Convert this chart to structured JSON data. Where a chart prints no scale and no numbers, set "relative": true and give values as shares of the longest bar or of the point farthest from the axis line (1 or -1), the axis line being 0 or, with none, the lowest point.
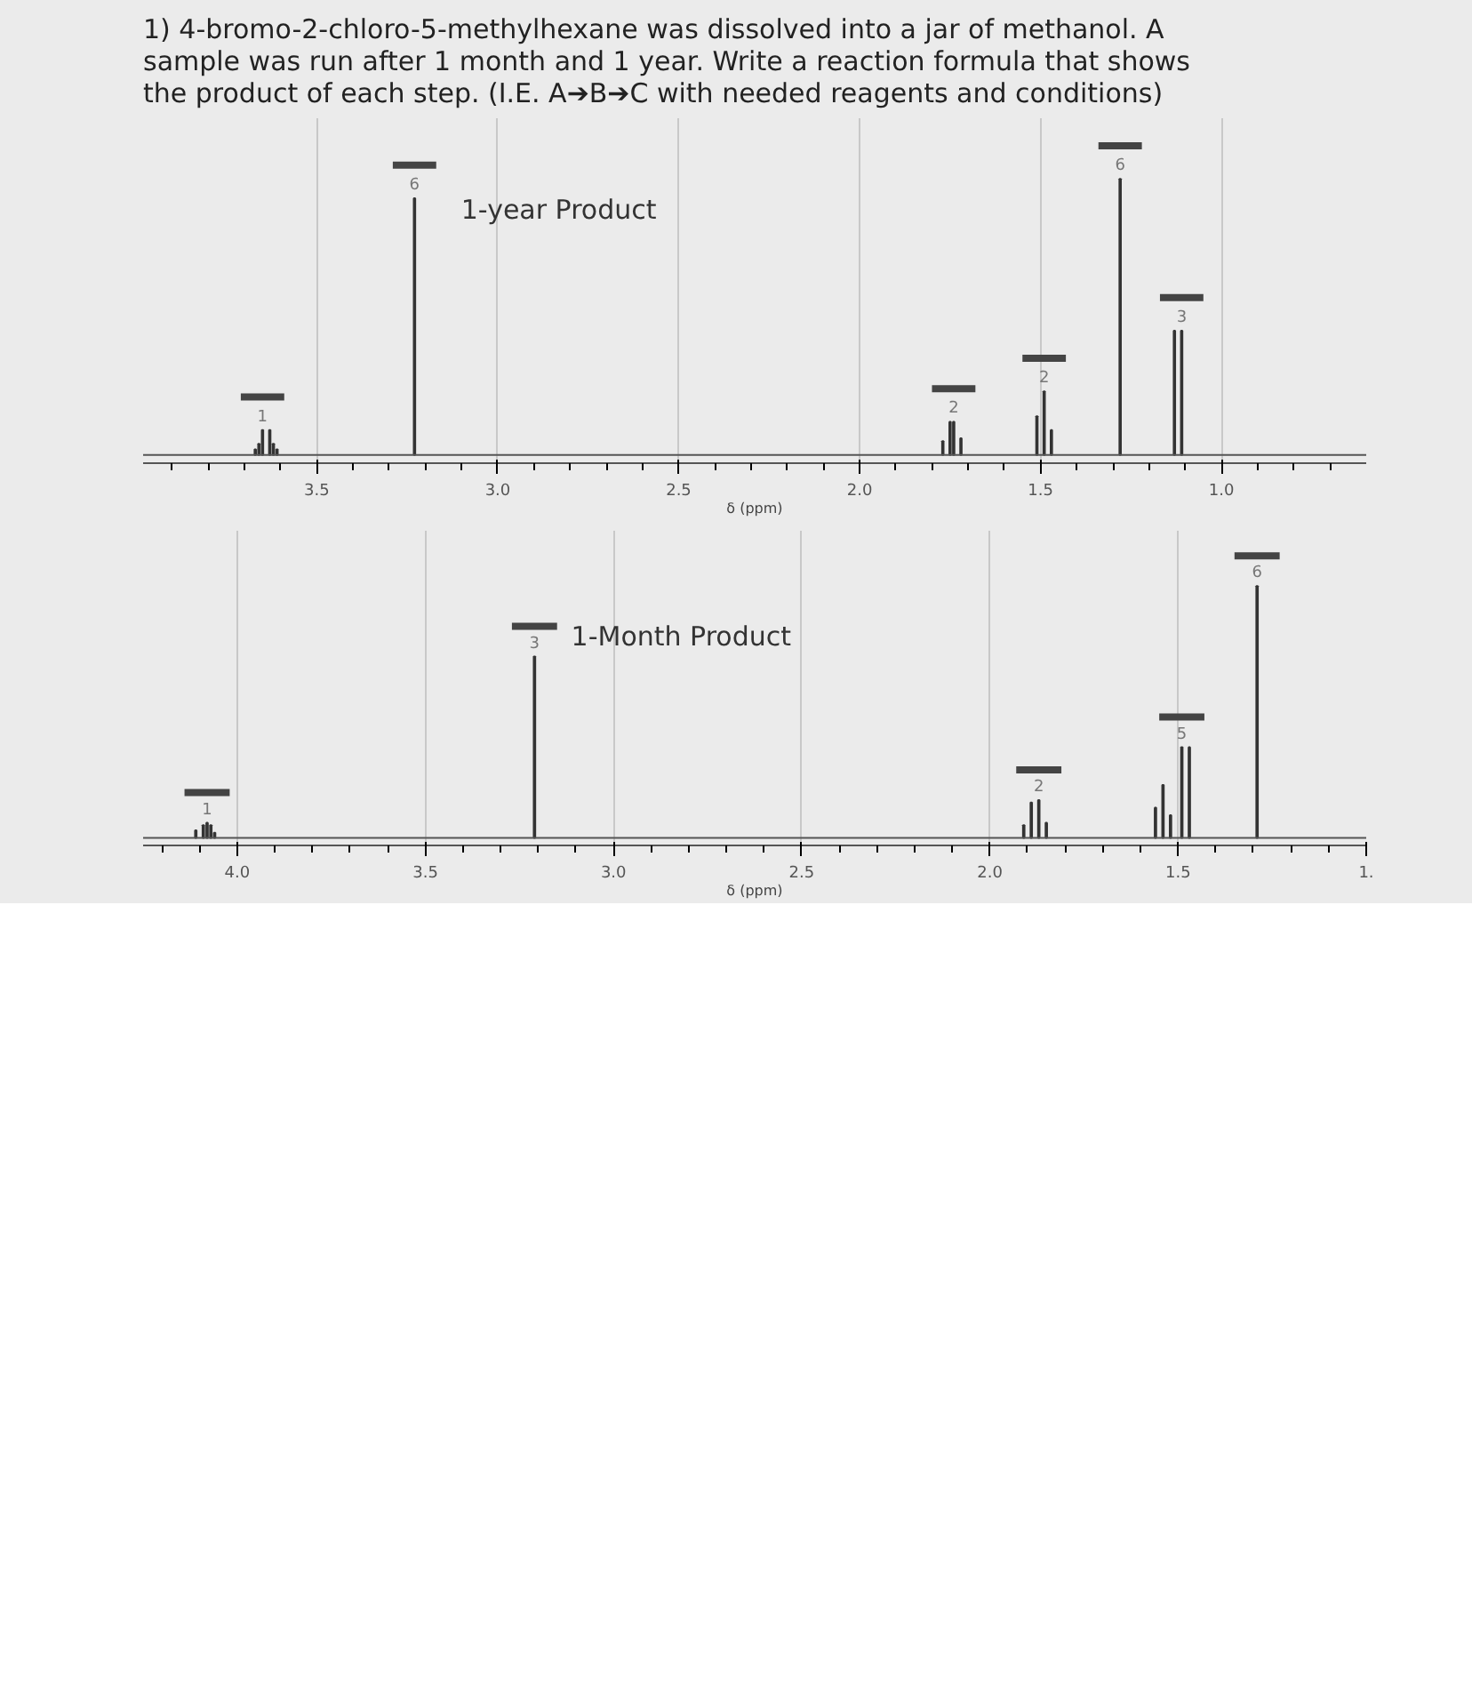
{
  "chart_data": [
    {
      "type": "bar",
      "title": "1-year Product",
      "xlabel": "δ (ppm)",
      "relative": true,
      "grid": "x",
      "color": "#333333",
      "annotations": [
        "1) 4-bromo-2-chloro-5-methylhexane was dissolved into a jar of methanol. A sample was run after 1 month and 1 year. Write a reaction formula that shows the product of each step. (I.E. A➔B➔C with needed reagents and conditions)",
        {
          "text": "1",
          "x": 3.65,
          "y": 0.09
        },
        {
          "text": "6",
          "x": 3.23,
          "y": 0.93
        },
        {
          "text": "2",
          "x": 1.74,
          "y": 0.12
        },
        {
          "text": "2",
          "x": 1.49,
          "y": 0.23
        },
        {
          "text": "6",
          "x": 1.28,
          "y": 1
        },
        {
          "text": "3",
          "x": 1.11,
          "y": 0.45
        }
      ],
      "xlim": [
        3.98,
        0.6
      ],
      "xticks": [
        {
          "value": 3.5,
          "label": "3.5"
        },
        {
          "value": 3.0,
          "label": "3.0"
        },
        {
          "value": 2.5,
          "label": "2.5"
        },
        {
          "value": 2.0,
          "label": "2.0"
        },
        {
          "value": 1.5,
          "label": "1.5"
        },
        {
          "value": 1.0,
          "label": "1.0"
        }
      ],
      "x": [
        3.67,
        3.66,
        3.65,
        3.63,
        3.62,
        3.61,
        3.23,
        1.77,
        1.75,
        1.74,
        1.72,
        1.51,
        1.49,
        1.47,
        1.28,
        1.13,
        1.11
      ],
      "values": [
        0.02,
        0.04,
        0.09,
        0.09,
        0.04,
        0.02,
        0.93,
        0.05,
        0.12,
        0.12,
        0.06,
        0.14,
        0.23,
        0.09,
        1,
        0.45,
        0.45
      ]
    },
    {
      "type": "bar",
      "title": "1-Month Product",
      "xlabel": "δ (ppm)",
      "relative": true,
      "grid": "x",
      "color": "#333333",
      "annotations": [
        {
          "text": "1",
          "x": 4.08,
          "y": 0.06
        },
        {
          "text": "3",
          "x": 3.21,
          "y": 0.72
        },
        {
          "text": "2",
          "x": 1.87,
          "y": 0.15
        },
        {
          "text": "5",
          "x": 1.49,
          "y": 0.36
        },
        {
          "text": "6",
          "x": 1.29,
          "y": 1
        }
      ],
      "xlim": [
        4.25,
        1.0
      ],
      "xticks": [
        {
          "value": 4.0,
          "label": "4.0"
        },
        {
          "value": 3.5,
          "label": "3.5"
        },
        {
          "value": 3.0,
          "label": "3.0"
        },
        {
          "value": 2.5,
          "label": "2.5"
        },
        {
          "value": 2.0,
          "label": "2.0"
        },
        {
          "value": 1.5,
          "label": "1.5"
        },
        {
          "value": 1.0,
          "label": "1."
        }
      ],
      "x": [
        4.11,
        4.09,
        4.08,
        4.07,
        4.06,
        3.21,
        1.91,
        1.89,
        1.87,
        1.85,
        1.56,
        1.54,
        1.52,
        1.49,
        1.47,
        1.29
      ],
      "values": [
        0.03,
        0.05,
        0.06,
        0.05,
        0.02,
        0.72,
        0.05,
        0.14,
        0.15,
        0.06,
        0.12,
        0.21,
        0.09,
        0.36,
        0.36,
        1
      ]
    }
  ]
}
